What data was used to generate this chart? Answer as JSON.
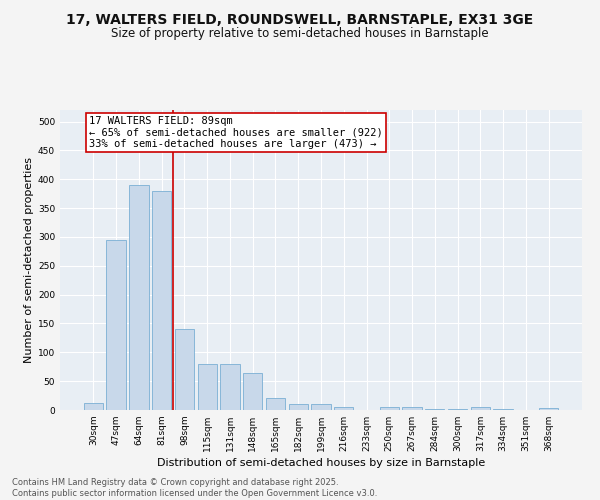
{
  "title1": "17, WALTERS FIELD, ROUNDSWELL, BARNSTAPLE, EX31 3GE",
  "title2": "Size of property relative to semi-detached houses in Barnstaple",
  "xlabel": "Distribution of semi-detached houses by size in Barnstaple",
  "ylabel": "Number of semi-detached properties",
  "categories": [
    "30sqm",
    "47sqm",
    "64sqm",
    "81sqm",
    "98sqm",
    "115sqm",
    "131sqm",
    "148sqm",
    "165sqm",
    "182sqm",
    "199sqm",
    "216sqm",
    "233sqm",
    "250sqm",
    "267sqm",
    "284sqm",
    "300sqm",
    "317sqm",
    "334sqm",
    "351sqm",
    "368sqm"
  ],
  "values": [
    12,
    295,
    390,
    380,
    140,
    80,
    80,
    65,
    20,
    10,
    10,
    5,
    0,
    5,
    6,
    2,
    2,
    5,
    2,
    0,
    3
  ],
  "bar_color": "#c8d8ea",
  "bar_edge_color": "#7aafd4",
  "vline_color": "#cc0000",
  "annotation_text": "17 WALTERS FIELD: 89sqm\n← 65% of semi-detached houses are smaller (922)\n33% of semi-detached houses are larger (473) →",
  "annotation_box_color": "#ffffff",
  "annotation_box_edge_color": "#cc0000",
  "ylim": [
    0,
    520
  ],
  "yticks": [
    0,
    50,
    100,
    150,
    200,
    250,
    300,
    350,
    400,
    450,
    500
  ],
  "background_color": "#e8eef4",
  "grid_color": "#ffffff",
  "fig_background": "#f4f4f4",
  "footer_text": "Contains HM Land Registry data © Crown copyright and database right 2025.\nContains public sector information licensed under the Open Government Licence v3.0.",
  "title_fontsize": 10,
  "subtitle_fontsize": 8.5,
  "axis_label_fontsize": 8,
  "tick_fontsize": 6.5,
  "annotation_fontsize": 7.5,
  "footer_fontsize": 6
}
